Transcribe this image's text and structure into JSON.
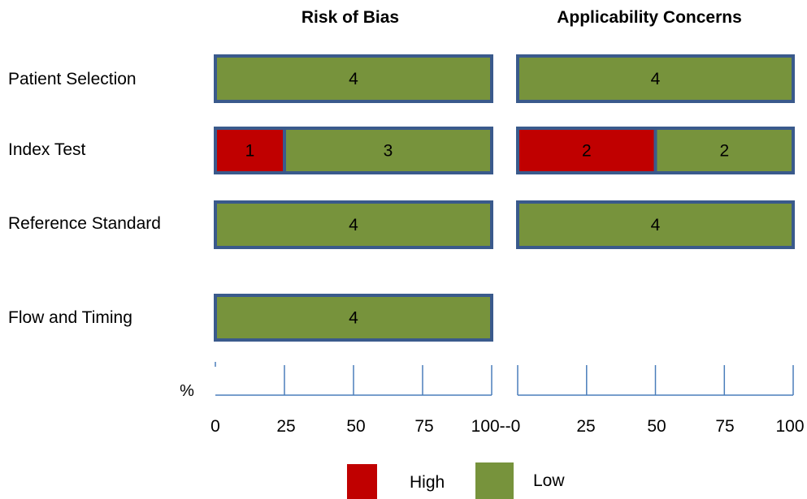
{
  "chart_data": {
    "type": "bar",
    "orientation": "horizontal",
    "stacked": "percent",
    "panels": [
      {
        "title": "Risk of Bias"
      },
      {
        "title": "Applicability Concerns"
      }
    ],
    "categories": [
      "Patient Selection",
      "Index Test",
      "Reference Standard",
      "Flow and Timing"
    ],
    "series": [
      {
        "name": "High",
        "color": "#c00000",
        "risk_of_bias": [
          0,
          1,
          0,
          0
        ],
        "applicability_concerns": [
          0,
          2,
          0,
          null
        ]
      },
      {
        "name": "Low",
        "color": "#77933c",
        "risk_of_bias": [
          4,
          3,
          4,
          4
        ],
        "applicability_concerns": [
          4,
          2,
          4,
          null
        ]
      }
    ],
    "axis_label": "%",
    "tick_labels_left": [
      "0",
      "25",
      "50",
      "75",
      "100--0"
    ],
    "tick_labels_right": [
      "25",
      "50",
      "75",
      "100"
    ],
    "xlim": [
      0,
      100
    ],
    "bar_border_color": "#3a5a8c",
    "axis_color": "#4a7ebb",
    "legend": {
      "placement": "bottom",
      "items": [
        "High",
        "Low"
      ]
    },
    "grid": false
  }
}
